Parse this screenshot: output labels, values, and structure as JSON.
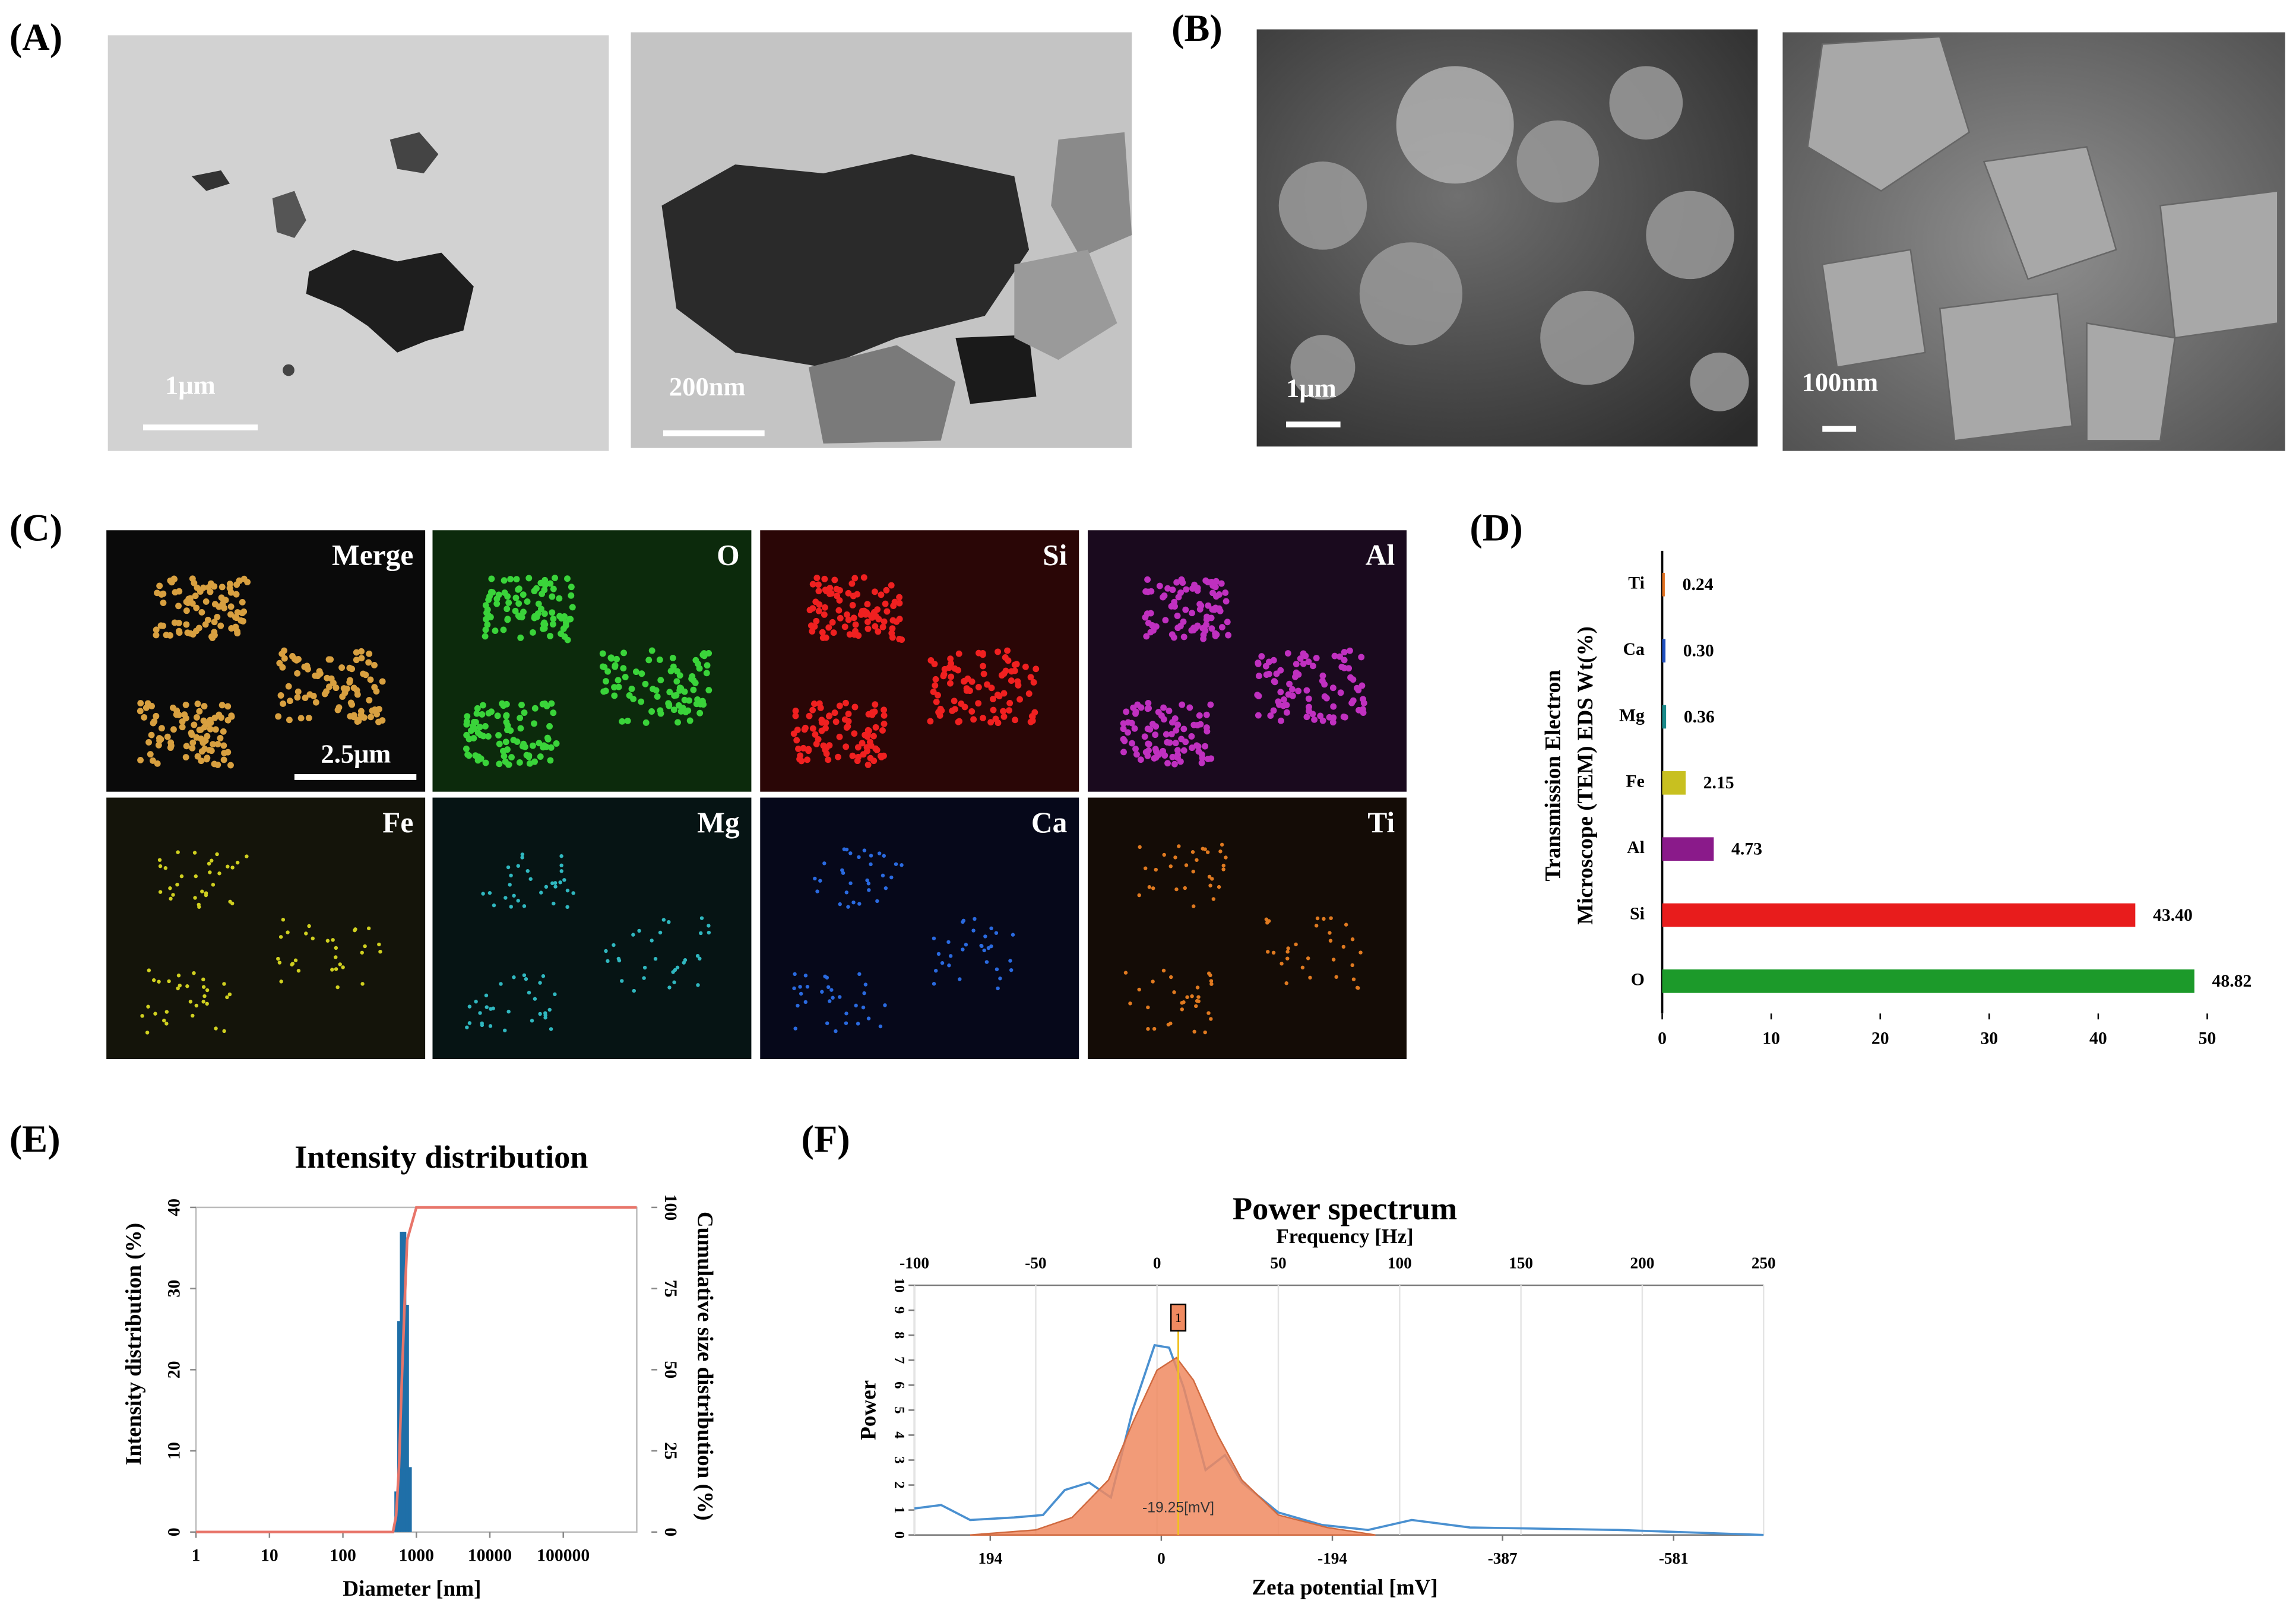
{
  "panels": {
    "a": {
      "label": "(A)",
      "scale_left": "1μm",
      "scale_right": "200nm"
    },
    "b": {
      "label": "(B)",
      "scale_left": "1μm",
      "scale_right": "100nm"
    },
    "c": {
      "label": "(C)",
      "maps": [
        "Merge",
        "O",
        "Si",
        "Al",
        "Fe",
        "Mg",
        "Ca",
        "Ti"
      ],
      "scale": "2.5μm"
    },
    "d": {
      "label": "(D)"
    },
    "e": {
      "label": "(E)"
    },
    "f": {
      "label": "(F)"
    }
  },
  "chart_data": [
    {
      "type": "hbar",
      "categories": [
        "Ti",
        "Ca",
        "Mg",
        "Fe",
        "Al",
        "Si",
        "O"
      ],
      "values": [
        0.24,
        0.3,
        0.36,
        2.15,
        4.73,
        43.4,
        48.82
      ],
      "value_labels": [
        "0.24",
        "0.30",
        "0.36",
        "2.15",
        "4.73",
        "43.40",
        "48.82"
      ],
      "colors": [
        "#e07020",
        "#1f4fbf",
        "#1a8a8a",
        "#c8c020",
        "#8a1a8a",
        "#e81c1c",
        "#1c9a2a"
      ],
      "y_label": [
        "Transmission Electron",
        "Microscope (TEM) EDS Wt(%)"
      ],
      "xlim": [
        0,
        50
      ],
      "xticks": [
        0,
        10,
        20,
        30,
        40,
        50
      ]
    },
    {
      "type": "distribution",
      "title": "Intensity distribution",
      "x_label": "Diameter [nm]",
      "y_label": "Intensity distribution (%)",
      "y2_label": "Cumulative size distribution (%)",
      "xscale": "log",
      "xlim": [
        1,
        1000000
      ],
      "xticks": [
        1,
        10,
        100,
        1000,
        10000,
        100000
      ],
      "ylim": [
        0,
        40
      ],
      "yticks": [
        0,
        10,
        20,
        30,
        40
      ],
      "y2lim": [
        0,
        100
      ],
      "y2ticks": [
        0,
        25,
        50,
        75,
        100
      ],
      "series": [
        {
          "kind": "bar",
          "color": "#1f6fa8",
          "x": [
            530,
            580,
            630,
            690,
            750,
            820
          ],
          "values": [
            5,
            26,
            37,
            37,
            28,
            8
          ]
        },
        {
          "kind": "line",
          "axis": "y2",
          "color": "#e8756a",
          "x": [
            1,
            480,
            530,
            580,
            630,
            690,
            750,
            1000,
            1000000
          ],
          "values": [
            0,
            0,
            5,
            20,
            45,
            70,
            90,
            100,
            100
          ]
        }
      ]
    },
    {
      "type": "spectrum",
      "title": "Power spectrum",
      "x_label": "Frequency [Hz]",
      "x2_label": "Zeta potential [mV]",
      "y_label": "Power",
      "xlim": [
        -100,
        250
      ],
      "xticks": [
        -100,
        -50,
        0,
        50,
        100,
        150,
        200,
        250
      ],
      "x2lim": [
        280,
        -683
      ],
      "x2ticks": [
        194,
        0,
        -194,
        -387,
        -581
      ],
      "ylim": [
        0,
        10
      ],
      "yticks": [
        0,
        1,
        2,
        3,
        4,
        5,
        6,
        7,
        8,
        9,
        10
      ],
      "grid": true,
      "marker": {
        "value": -19.25,
        "label": "-19.25[mV]",
        "id": "1"
      },
      "series": [
        {
          "kind": "line",
          "color": "#4a90d0",
          "x": [
            -100,
            -89,
            -77,
            -59,
            -47,
            -38,
            -28,
            -19,
            -10,
            -1,
            5,
            11,
            20,
            28,
            35,
            50,
            68,
            87,
            105,
            129,
            190,
            250
          ],
          "values": [
            1.06,
            1.2,
            0.6,
            0.7,
            0.8,
            1.8,
            2.1,
            1.5,
            5,
            7.6,
            7.5,
            5.9,
            2.6,
            3.2,
            2.1,
            0.9,
            0.4,
            0.2,
            0.6,
            0.3,
            0.2,
            0
          ]
        },
        {
          "kind": "area",
          "color": "#f08a60",
          "x": [
            -77,
            -50,
            -35,
            -20,
            -10,
            0,
            8,
            15,
            25,
            35,
            50,
            70,
            90
          ],
          "values": [
            0,
            0.2,
            0.7,
            2.2,
            4.5,
            6.6,
            7.1,
            6.2,
            4,
            2.2,
            0.8,
            0.3,
            0
          ]
        }
      ]
    }
  ]
}
